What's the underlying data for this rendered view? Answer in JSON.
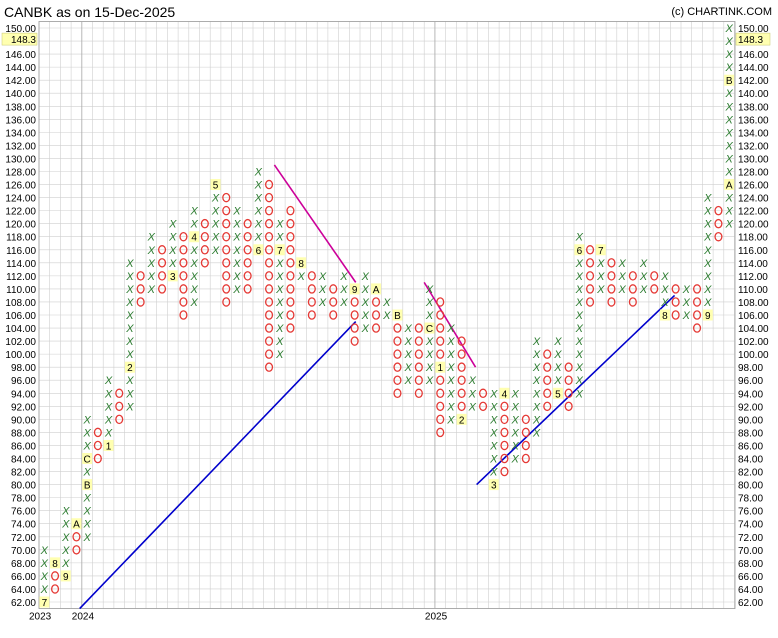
{
  "title": "CANBK as on 15-Dec-2025",
  "credit": "(c) CHARTINK.COM",
  "chart_data": {
    "type": "point-and-figure",
    "box_size": 2,
    "ylim": [
      62,
      150
    ],
    "y_ticks": [
      62,
      64,
      66,
      68,
      70,
      72,
      74,
      76,
      78,
      80,
      82,
      84,
      86,
      88,
      90,
      92,
      94,
      96,
      98,
      100,
      102,
      104,
      106,
      108,
      110,
      112,
      114,
      116,
      118,
      120,
      122,
      124,
      126,
      128,
      130,
      132,
      134,
      136,
      138,
      140,
      142,
      144,
      146,
      148,
      150
    ],
    "current_price": "148.3",
    "current_price_value": 148.3,
    "x_labels": [
      {
        "col": 0,
        "text": "2023"
      },
      {
        "col": 4,
        "text": "2024"
      },
      {
        "col": 37,
        "text": "2025"
      }
    ],
    "columns": [
      {
        "t": "X",
        "lo": 64,
        "hi": 70,
        "m": {
          "62": "7"
        }
      },
      {
        "t": "O",
        "lo": 64,
        "hi": 68,
        "m": {
          "68": "8"
        }
      },
      {
        "t": "X",
        "lo": 66,
        "hi": 76,
        "m": {
          "66": "9"
        }
      },
      {
        "t": "O",
        "lo": 70,
        "hi": 74,
        "m": {
          "74": "A"
        }
      },
      {
        "t": "X",
        "lo": 72,
        "hi": 90,
        "m": {
          "80": "B",
          "84": "C"
        }
      },
      {
        "t": "O",
        "lo": 84,
        "hi": 88
      },
      {
        "t": "X",
        "lo": 86,
        "hi": 96,
        "m": {
          "86": "1"
        }
      },
      {
        "t": "O",
        "lo": 90,
        "hi": 94
      },
      {
        "t": "X",
        "lo": 92,
        "hi": 114,
        "m": {
          "98": "2"
        }
      },
      {
        "t": "O",
        "lo": 108,
        "hi": 112
      },
      {
        "t": "X",
        "lo": 110,
        "hi": 118
      },
      {
        "t": "O",
        "lo": 110,
        "hi": 116
      },
      {
        "t": "X",
        "lo": 112,
        "hi": 120,
        "m": {
          "112": "3"
        }
      },
      {
        "t": "O",
        "lo": 106,
        "hi": 118
      },
      {
        "t": "X",
        "lo": 108,
        "hi": 122,
        "m": {
          "118": "4"
        }
      },
      {
        "t": "O",
        "lo": 114,
        "hi": 120
      },
      {
        "t": "X",
        "lo": 116,
        "hi": 126,
        "m": {
          "126": "5"
        }
      },
      {
        "t": "O",
        "lo": 108,
        "hi": 124
      },
      {
        "t": "X",
        "lo": 110,
        "hi": 122
      },
      {
        "t": "O",
        "lo": 110,
        "hi": 120
      },
      {
        "t": "X",
        "lo": 116,
        "hi": 128,
        "m": {
          "116": "6"
        }
      },
      {
        "t": "O",
        "lo": 98,
        "hi": 126
      },
      {
        "t": "X",
        "lo": 100,
        "hi": 120,
        "m": {
          "116": "7"
        }
      },
      {
        "t": "O",
        "lo": 104,
        "hi": 122
      },
      {
        "t": "X",
        "lo": 112,
        "hi": 114,
        "m": {
          "114": "8"
        }
      },
      {
        "t": "O",
        "lo": 106,
        "hi": 112
      },
      {
        "t": "X",
        "lo": 108,
        "hi": 112
      },
      {
        "t": "O",
        "lo": 106,
        "hi": 110
      },
      {
        "t": "X",
        "lo": 108,
        "hi": 112
      },
      {
        "t": "O",
        "lo": 102,
        "hi": 110,
        "m": {
          "110": "9"
        }
      },
      {
        "t": "X",
        "lo": 104,
        "hi": 112
      },
      {
        "t": "O",
        "lo": 104,
        "hi": 110,
        "m": {
          "110": "A"
        }
      },
      {
        "t": "X",
        "lo": 106,
        "hi": 108
      },
      {
        "t": "O",
        "lo": 94,
        "hi": 106,
        "m": {
          "106": "B"
        }
      },
      {
        "t": "X",
        "lo": 96,
        "hi": 104
      },
      {
        "t": "O",
        "lo": 94,
        "hi": 104
      },
      {
        "t": "X",
        "lo": 96,
        "hi": 110,
        "m": {
          "104": "C"
        }
      },
      {
        "t": "O",
        "lo": 88,
        "hi": 108,
        "m": {
          "98": "1"
        }
      },
      {
        "t": "X",
        "lo": 90,
        "hi": 104
      },
      {
        "t": "O",
        "lo": 90,
        "hi": 102,
        "m": {
          "90": "2"
        }
      },
      {
        "t": "X",
        "lo": 92,
        "hi": 96
      },
      {
        "t": "O",
        "lo": 92,
        "hi": 94
      },
      {
        "t": "X",
        "lo": 80,
        "hi": 94,
        "m": {
          "80": "3"
        }
      },
      {
        "t": "O",
        "lo": 82,
        "hi": 92,
        "m": {
          "94": "4"
        }
      },
      {
        "t": "X",
        "lo": 84,
        "hi": 94
      },
      {
        "t": "O",
        "lo": 84,
        "hi": 90
      },
      {
        "t": "X",
        "lo": 88,
        "hi": 102
      },
      {
        "t": "O",
        "lo": 92,
        "hi": 100
      },
      {
        "t": "X",
        "lo": 94,
        "hi": 102,
        "m": {
          "94": "5"
        }
      },
      {
        "t": "O",
        "lo": 92,
        "hi": 98
      },
      {
        "t": "X",
        "lo": 94,
        "hi": 118,
        "m": {
          "116": "6"
        }
      },
      {
        "t": "O",
        "lo": 108,
        "hi": 116
      },
      {
        "t": "X",
        "lo": 110,
        "hi": 116,
        "m": {
          "116": "7"
        }
      },
      {
        "t": "O",
        "lo": 108,
        "hi": 114
      },
      {
        "t": "X",
        "lo": 110,
        "hi": 114
      },
      {
        "t": "O",
        "lo": 108,
        "hi": 112
      },
      {
        "t": "X",
        "lo": 110,
        "hi": 114
      },
      {
        "t": "O",
        "lo": 110,
        "hi": 112
      },
      {
        "t": "X",
        "lo": 108,
        "hi": 112,
        "m": {
          "106": "8"
        }
      },
      {
        "t": "O",
        "lo": 106,
        "hi": 110
      },
      {
        "t": "X",
        "lo": 106,
        "hi": 110
      },
      {
        "t": "O",
        "lo": 104,
        "hi": 110
      },
      {
        "t": "X",
        "lo": 106,
        "hi": 124,
        "m": {
          "106": "9"
        }
      },
      {
        "t": "O",
        "lo": 118,
        "hi": 122
      },
      {
        "t": "X",
        "lo": 120,
        "hi": 150,
        "m": {
          "126": "A",
          "142": "B"
        }
      }
    ],
    "trendlines": [
      {
        "type": "support",
        "color": "#0000cc",
        "from": {
          "col": 3.8,
          "price": 61
        },
        "to": {
          "col": 29.6,
          "price": 105
        }
      },
      {
        "type": "resistance",
        "color": "#cc0099",
        "from": {
          "col": 22,
          "price": 129
        },
        "to": {
          "col": 29.6,
          "price": 111
        }
      },
      {
        "type": "resistance",
        "color": "#cc0099",
        "from": {
          "col": 36,
          "price": 111
        },
        "to": {
          "col": 40.8,
          "price": 98
        }
      },
      {
        "type": "support",
        "color": "#0000cc",
        "from": {
          "col": 40.9,
          "price": 80
        },
        "to": {
          "col": 59.4,
          "price": 109
        }
      }
    ],
    "colors": {
      "x": "#2e7d32",
      "o": "#e53935",
      "highlight": "#ffffb0",
      "grid": "#cfcfcf",
      "marker": "#000000"
    }
  }
}
